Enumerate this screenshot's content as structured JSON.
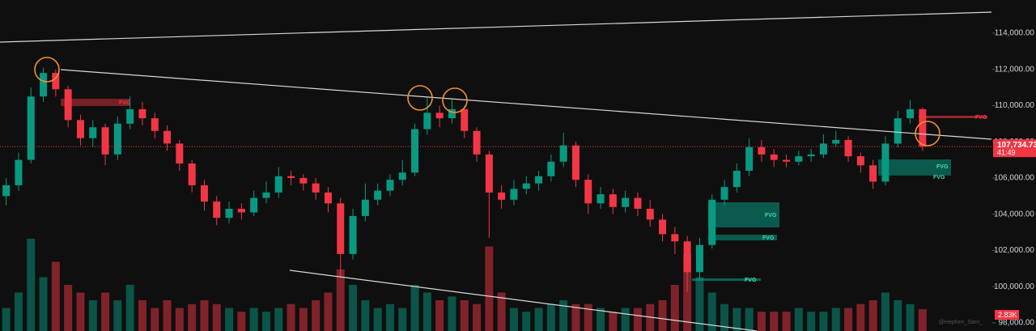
{
  "chart_data": {
    "type": "candlestick",
    "up_color": "#089981",
    "down_color": "#f23645",
    "open": [
      105000,
      105600,
      107000,
      110500,
      111800,
      110900,
      109200,
      108200,
      108800,
      107300,
      109000,
      109800,
      109300,
      108600,
      107900,
      106800,
      105600,
      104700,
      103800,
      104300,
      104100,
      104900,
      105200,
      106100,
      106000,
      105700,
      105200,
      104600,
      101800,
      103900,
      104800,
      105300,
      105900,
      106300,
      108700,
      109600,
      109300,
      109800,
      108600,
      107300,
      105200,
      104800,
      105400,
      105700,
      106100,
      106900,
      107800,
      105900,
      104600,
      105100,
      104400,
      104900,
      104300,
      103700,
      102900,
      102500,
      100800,
      102300,
      104800,
      105500,
      106400,
      107700,
      107300,
      107000,
      106900,
      107200,
      107300,
      107900,
      108100,
      107200,
      106700,
      105800,
      107900,
      109300,
      109800
    ],
    "high": [
      106000,
      107400,
      111000,
      112100,
      112000,
      111100,
      109500,
      109200,
      109000,
      109400,
      110500,
      110200,
      109600,
      108900,
      108100,
      107000,
      105900,
      105000,
      104700,
      104600,
      105300,
      105800,
      106600,
      106400,
      106200,
      106000,
      105500,
      104900,
      104300,
      105700,
      105700,
      106200,
      107000,
      109000,
      110500,
      110000,
      110400,
      110000,
      108800,
      107500,
      105600,
      105900,
      106100,
      106400,
      107300,
      108500,
      108000,
      106200,
      105500,
      105400,
      105300,
      105200,
      104800,
      104000,
      103300,
      102800,
      102700,
      105100,
      105900,
      106800,
      108200,
      108100,
      107600,
      107300,
      107500,
      107600,
      108400,
      108600,
      108300,
      107400,
      107000,
      108300,
      109700,
      110300,
      109900
    ],
    "low": [
      104500,
      105300,
      106800,
      110200,
      110500,
      108800,
      107800,
      107700,
      106700,
      107000,
      108700,
      108900,
      108200,
      107500,
      106400,
      105200,
      104200,
      103400,
      103500,
      103700,
      103900,
      104600,
      104900,
      105600,
      105300,
      104800,
      104100,
      100500,
      101500,
      103600,
      104500,
      105000,
      105600,
      106100,
      108400,
      108800,
      109000,
      108200,
      106900,
      102700,
      104300,
      104500,
      105100,
      105300,
      105800,
      106600,
      105500,
      104000,
      104300,
      104000,
      104100,
      103900,
      103300,
      102500,
      101800,
      99700,
      100400,
      102100,
      104500,
      105200,
      106100,
      106900,
      106600,
      106600,
      106700,
      106900,
      107100,
      107700,
      106900,
      106300,
      105400,
      105600,
      107700,
      109000,
      107500
    ],
    "close": [
      105600,
      107000,
      110500,
      111800,
      110900,
      109200,
      108200,
      108800,
      107300,
      109000,
      109800,
      109300,
      108600,
      107900,
      106800,
      105600,
      104700,
      103800,
      104300,
      104100,
      104900,
      105200,
      106100,
      106000,
      105700,
      105200,
      104600,
      101800,
      103900,
      104800,
      105300,
      105900,
      106300,
      108700,
      109600,
      109300,
      109800,
      108600,
      107300,
      105200,
      104800,
      105400,
      105700,
      106100,
      106900,
      107800,
      105900,
      104600,
      105100,
      104400,
      104900,
      104300,
      103700,
      102900,
      102500,
      100800,
      102300,
      104800,
      105500,
      106400,
      107700,
      107300,
      107000,
      106900,
      107200,
      107300,
      107900,
      108100,
      107200,
      106700,
      105800,
      107900,
      109300,
      109800,
      107734.73
    ],
    "volume": [
      3000,
      5000,
      12000,
      7000,
      9000,
      6000,
      5000,
      4000,
      5000,
      4000,
      6000,
      4000,
      3000,
      4000,
      3000,
      3500,
      4000,
      3500,
      3000,
      2500,
      3000,
      2500,
      3000,
      3500,
      3000,
      4000,
      5000,
      8000,
      6000,
      4000,
      3000,
      3500,
      3000,
      6000,
      5000,
      4000,
      4500,
      4000,
      3500,
      11000,
      5000,
      3000,
      2500,
      3000,
      3500,
      4000,
      3500,
      3500,
      3000,
      2500,
      3000,
      3000,
      3500,
      4000,
      6000,
      10000,
      7000,
      5000,
      3500,
      3000,
      3000,
      2500,
      2500,
      2500,
      3000,
      2500,
      2500,
      3000,
      3000,
      3500,
      4000,
      5000,
      4000,
      3500,
      2830
    ],
    "ylim": [
      97550,
      115830
    ],
    "yticks": [
      {
        "value": 98000,
        "label": "98,000.00"
      },
      {
        "value": 100000,
        "label": "100,000.00"
      },
      {
        "value": 102000,
        "label": "102,000.00"
      },
      {
        "value": 104000,
        "label": "104,000.00"
      },
      {
        "value": 106000,
        "label": "106,000.00"
      },
      {
        "value": 108000,
        "label": "108,000.00"
      },
      {
        "value": 110000,
        "label": "110,000.00"
      },
      {
        "value": 112000,
        "label": "112,000.00"
      },
      {
        "value": 114000,
        "label": "114,000.00"
      }
    ],
    "last_price_label": "107,734.73",
    "countdown": "41:49",
    "last_volume_label": "2.83K",
    "annotations": [
      "FVG",
      "FVG",
      "FVG",
      "FVG",
      "FVG",
      "FVG",
      "FVG"
    ],
    "watermark": "@Hephen_Sarri_"
  }
}
